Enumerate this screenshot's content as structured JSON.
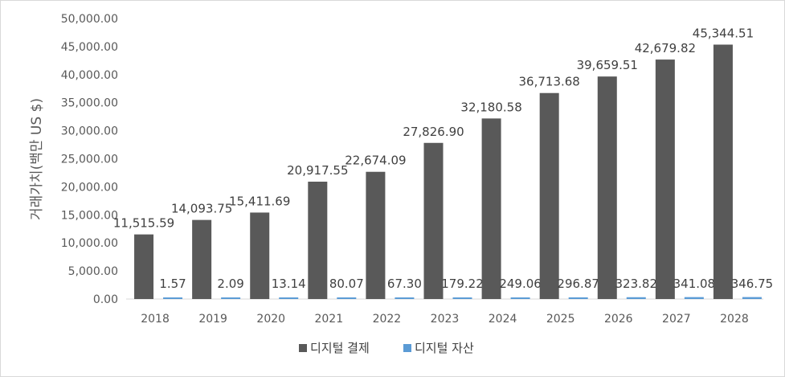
{
  "chart_data": {
    "type": "bar",
    "ylabel": "거래가치(백만 US $)",
    "ylim": [
      0,
      50000
    ],
    "y_ticks": [
      "0.00",
      "5,000.00",
      "10,000.00",
      "15,000.00",
      "20,000.00",
      "25,000.00",
      "30,000.00",
      "35,000.00",
      "40,000.00",
      "45,000.00",
      "50,000.00"
    ],
    "y_tick_values": [
      0,
      5000,
      10000,
      15000,
      20000,
      25000,
      30000,
      35000,
      40000,
      45000,
      50000
    ],
    "categories": [
      "2018",
      "2019",
      "2020",
      "2021",
      "2022",
      "2023",
      "2024",
      "2025",
      "2026",
      "2027",
      "2028"
    ],
    "series": [
      {
        "name": "디지털 결제",
        "color": "#595959",
        "values": [
          11515.59,
          14093.75,
          15411.69,
          20917.55,
          22674.09,
          27826.9,
          32180.58,
          36713.68,
          39659.51,
          42679.82,
          45344.51
        ],
        "labels": [
          "11,515.59",
          "14,093.75",
          "15,411.69",
          "20,917.55",
          "22,674.09",
          "27,826.90",
          "32,180.58",
          "36,713.68",
          "39,659.51",
          "42,679.82",
          "45,344.51"
        ]
      },
      {
        "name": "디지털 자산",
        "color": "#5b9bd5",
        "values": [
          1.57,
          2.09,
          13.14,
          80.07,
          67.3,
          179.22,
          249.06,
          296.87,
          323.82,
          341.08,
          346.75
        ],
        "labels": [
          "1.57",
          "2.09",
          "13.14",
          "80.07",
          "67.30",
          "179.22",
          "249.06",
          "296.87",
          "323.82",
          "341.08",
          "346.75"
        ]
      }
    ],
    "legend_position": "bottom",
    "grid": false
  }
}
